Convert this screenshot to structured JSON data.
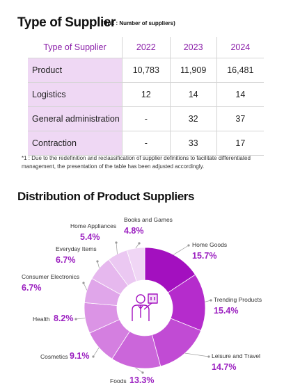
{
  "supplier_section": {
    "title": "Type of Supplier",
    "unit": "(Unit : Number of suppliers)"
  },
  "supplier_table": {
    "headers": [
      "Type of Supplier",
      "2022",
      "2023",
      "2024"
    ],
    "rows": [
      [
        "Product",
        "10,783",
        "11,909",
        "16,481"
      ],
      [
        "Logistics",
        "12",
        "14",
        "14"
      ],
      [
        "General administration",
        "-",
        "32",
        "37"
      ],
      [
        "Contraction",
        "-",
        "33",
        "17"
      ]
    ]
  },
  "footnote": "*1 : Due to the redefinition and reclassification of supplier definitions to facilitate differentiated management, the presentation of the table has been adjusted accordingly.",
  "distribution_section": {
    "title": "Distribution of Product Suppliers"
  },
  "chart_data": {
    "type": "pie",
    "title": "Distribution of Product Suppliers",
    "donut": true,
    "center_icon": "person-with-box-icon",
    "slices": [
      {
        "label": "Home Goods",
        "value": 15.7,
        "display": "15.7%",
        "color": "#a310bf"
      },
      {
        "label": "Trending Products",
        "value": 15.4,
        "display": "15.4%",
        "color": "#b52ccc"
      },
      {
        "label": "Leisure and Travel",
        "value": 14.7,
        "display": "14.7%",
        "color": "#c14bd4"
      },
      {
        "label": "Foods",
        "value": 13.3,
        "display": "13.3%",
        "color": "#cb66da"
      },
      {
        "label": "Cosmetics",
        "value": 9.1,
        "display": "9.1%",
        "color": "#d47fe0"
      },
      {
        "label": "Health",
        "value": 8.2,
        "display": "8.2%",
        "color": "#db94e5"
      },
      {
        "label": "Consumer Electronics",
        "value": 6.7,
        "display": "6.7%",
        "color": "#e0a6ea"
      },
      {
        "label": "Everyday Items",
        "value": 6.7,
        "display": "6.7%",
        "color": "#e6b8ee"
      },
      {
        "label": "Home Appliances",
        "value": 5.4,
        "display": "5.4%",
        "color": "#ebc8f2"
      },
      {
        "label": "Books and Games",
        "value": 4.8,
        "display": "4.8%",
        "color": "#f0d6f5"
      }
    ]
  }
}
